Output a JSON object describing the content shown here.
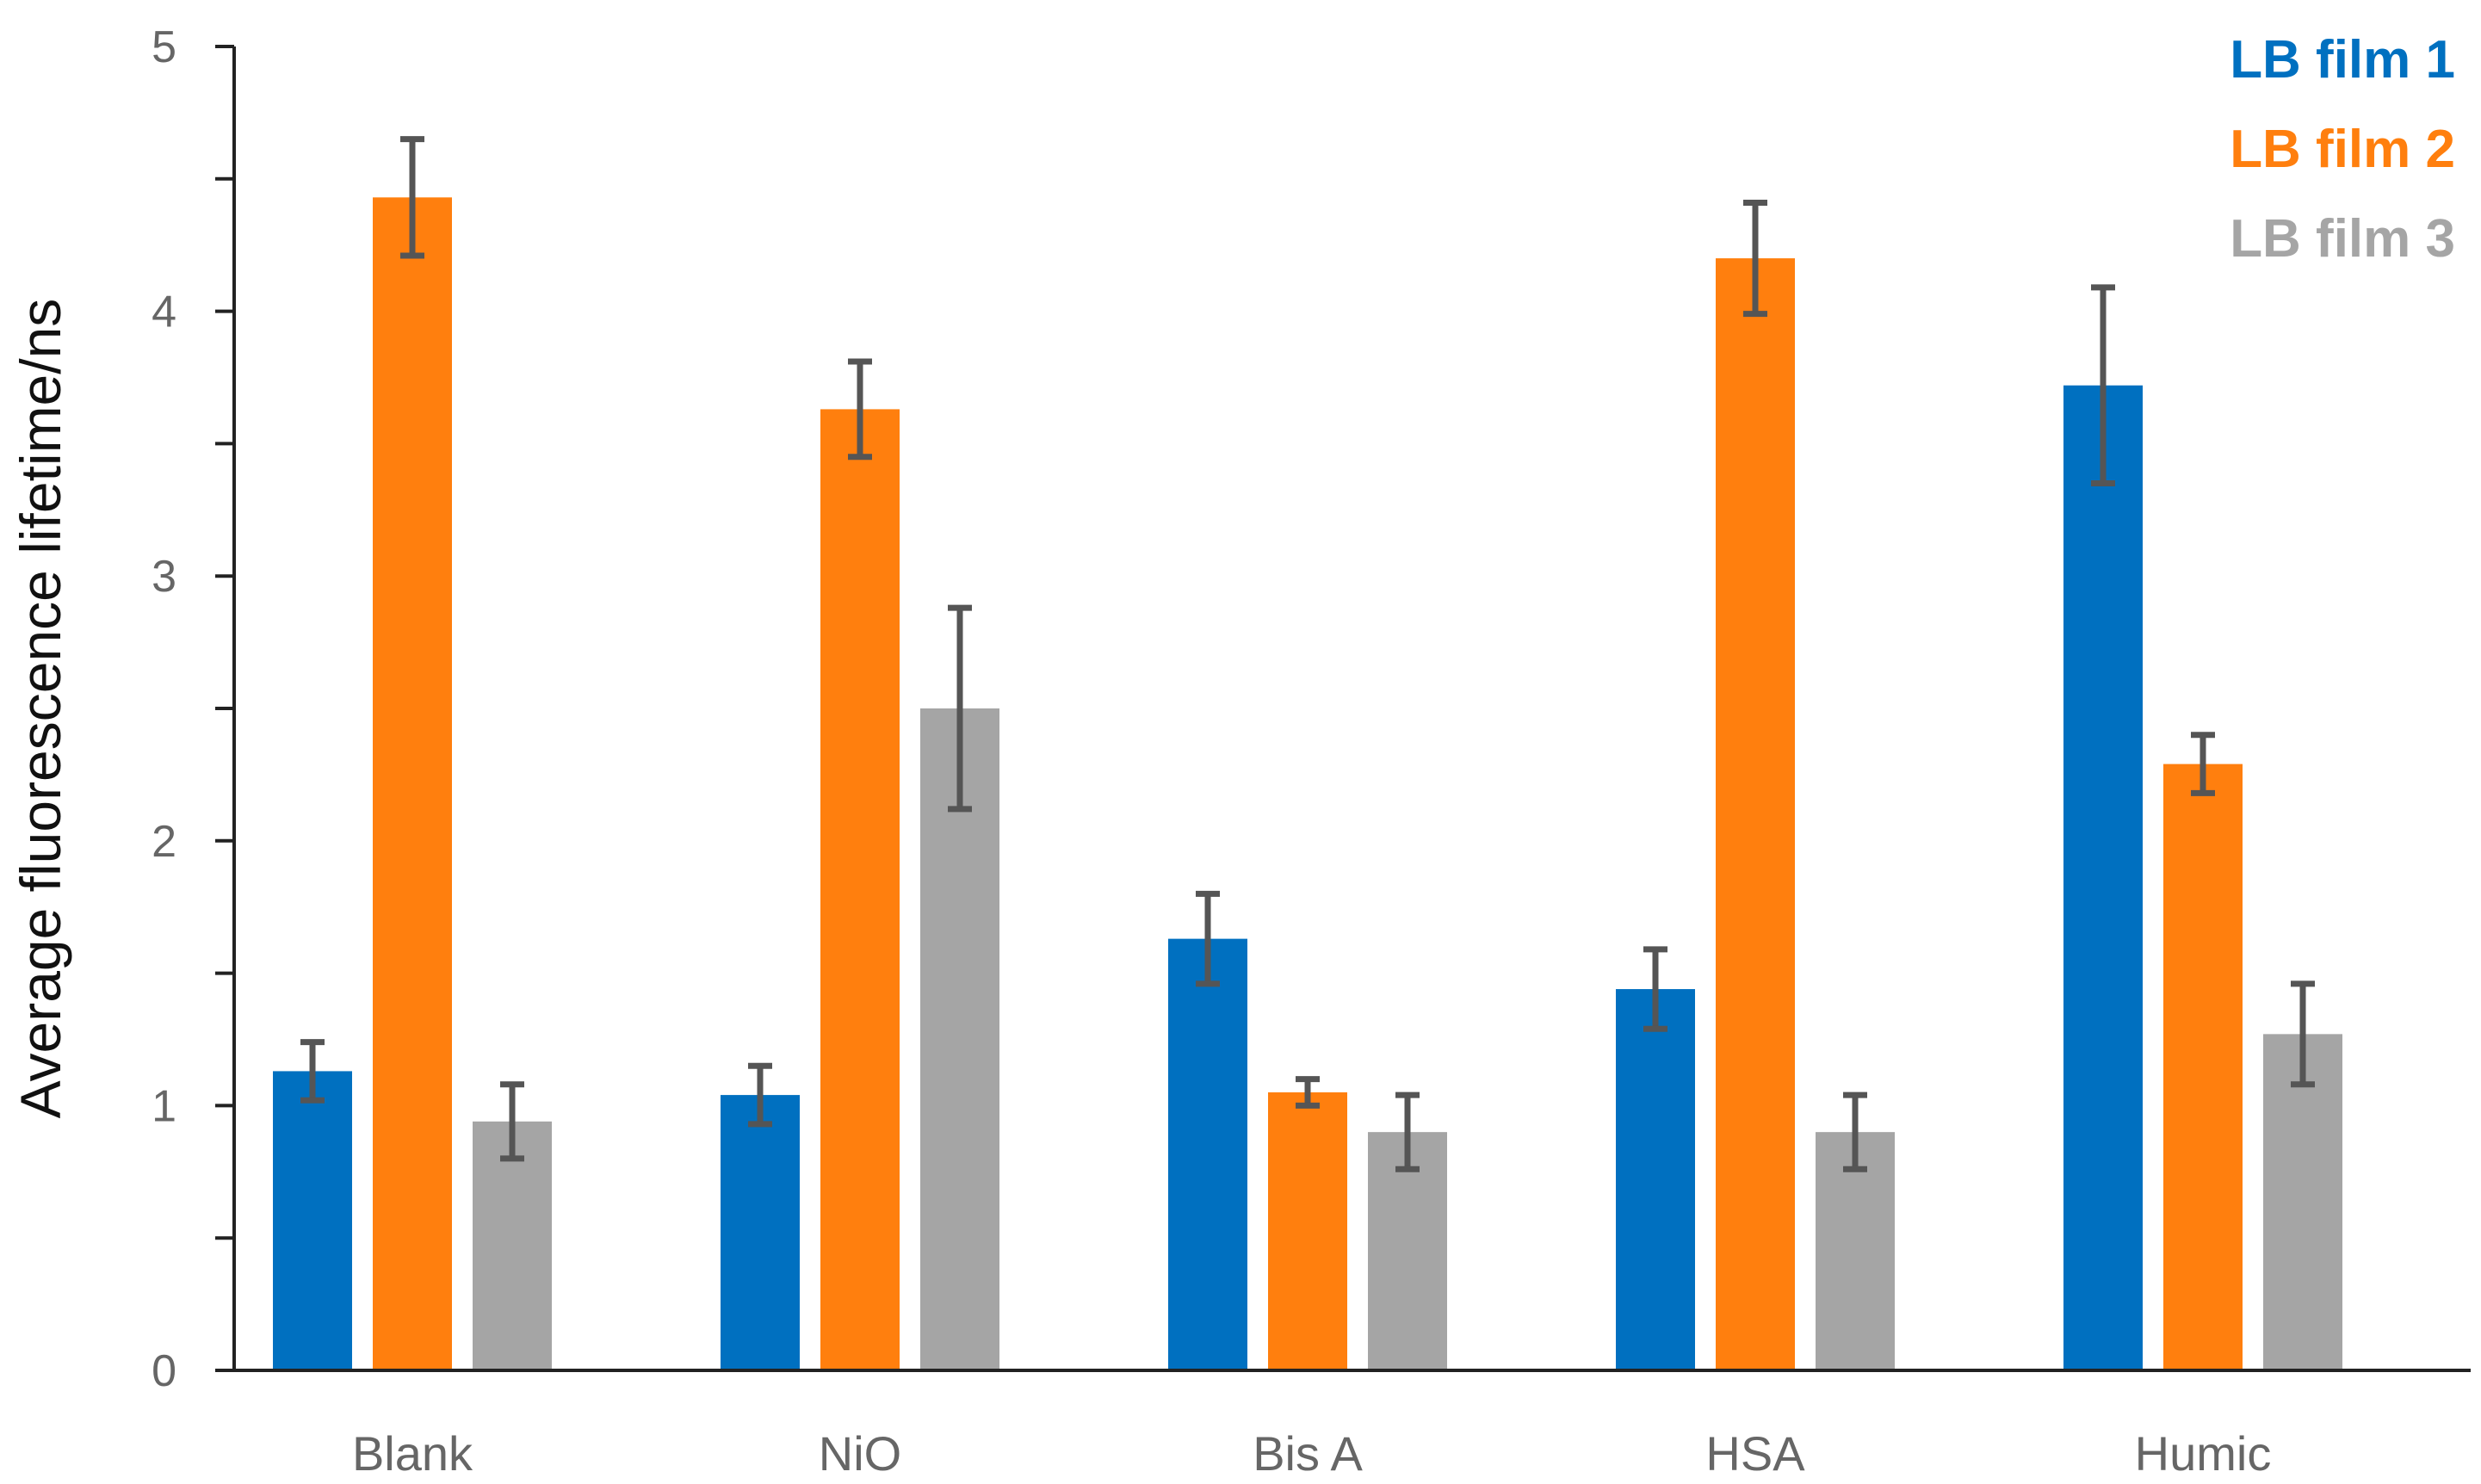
{
  "chart_data": {
    "type": "bar",
    "ylabel": "Average fluorescence  lifetime/ns",
    "xlabel": "",
    "ylim": [
      0,
      5
    ],
    "yticks": [
      0,
      1,
      2,
      3,
      4,
      5
    ],
    "grid": false,
    "legend_position": "top-right",
    "categories": [
      "Blank",
      "NiO",
      "Bis A",
      "HSA",
      "Humic"
    ],
    "series": [
      {
        "name": "LB film 1",
        "color": "#0070C0",
        "values": [
          1.13,
          1.04,
          1.63,
          1.44,
          3.72
        ],
        "errors": [
          0.11,
          0.11,
          0.17,
          0.15,
          0.37
        ]
      },
      {
        "name": "LB film 2",
        "color": "#FF7F0E",
        "values": [
          4.43,
          3.63,
          1.05,
          4.2,
          2.29
        ],
        "errors": [
          0.22,
          0.18,
          0.05,
          0.21,
          0.11
        ]
      },
      {
        "name": "LB film 3",
        "color": "#A5A5A5",
        "values": [
          0.94,
          2.5,
          0.9,
          0.9,
          1.27
        ],
        "errors": [
          0.14,
          0.38,
          0.14,
          0.14,
          0.19
        ]
      }
    ],
    "errorbar_color": "#555555"
  }
}
